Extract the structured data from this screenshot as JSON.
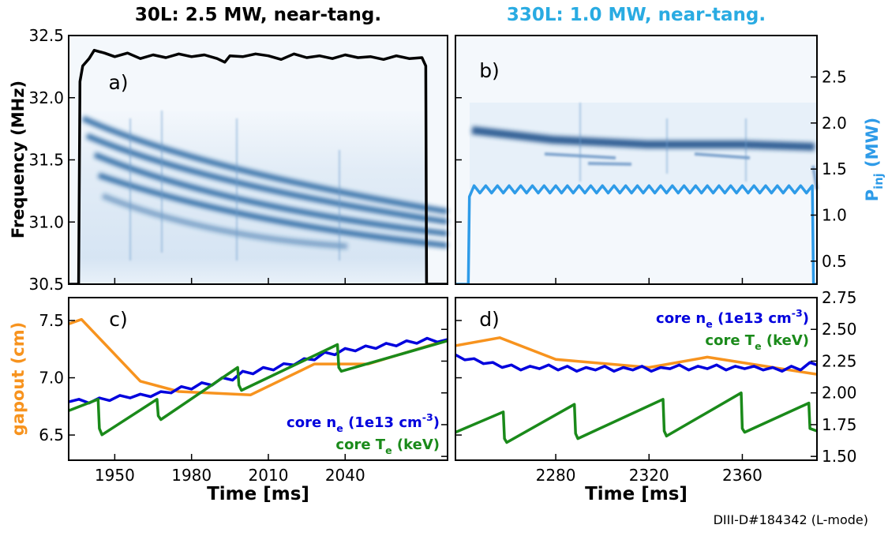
{
  "footnote": "DIII-D#184342 (L-mode)",
  "chart_data": [
    {
      "type": "line",
      "title": "30L: 2.5 MW, near-tang.",
      "title_color": "#000000",
      "panel_label": "a)",
      "ylabel": [
        {
          "text": "Frequency (MHz)"
        }
      ],
      "ylabel_color": "#000000",
      "xlim": [
        1932,
        2080
      ],
      "ylim": [
        30.5,
        32.5
      ],
      "y2lim": [
        0.25,
        2.95
      ],
      "yticks": [
        30.5,
        {
          "value": 31,
          "label": "31.0"
        },
        31.5,
        {
          "value": 32,
          "label": "32.0"
        },
        32.5
      ],
      "series": [
        {
          "color": "#000000",
          "axis": "y2",
          "x": [
            1932,
            1935.9,
            1936.4,
            1937.5,
            1940,
            1942,
            1946,
            1950,
            1955,
            1960,
            1965,
            1970,
            1975,
            1980,
            1985,
            1990,
            1993,
            1995,
            2000,
            2005,
            2010,
            2015,
            2020,
            2025,
            2030,
            2035,
            2040,
            2045,
            2050,
            2055,
            2060,
            2065,
            2070,
            2071.5,
            2071.8,
            2080
          ],
          "values": [
            0.25,
            0.25,
            2.45,
            2.62,
            2.7,
            2.79,
            2.76,
            2.72,
            2.76,
            2.7,
            2.74,
            2.71,
            2.75,
            2.72,
            2.74,
            2.7,
            2.66,
            2.73,
            2.72,
            2.75,
            2.73,
            2.69,
            2.75,
            2.71,
            2.73,
            2.7,
            2.74,
            2.71,
            2.72,
            2.69,
            2.73,
            2.7,
            2.71,
            2.62,
            0.25,
            0.25
          ]
        }
      ]
    },
    {
      "type": "line",
      "title": "330L: 1.0 MW, near-tang.",
      "title_color": "#29abe2",
      "panel_label": "b)",
      "y2label": [
        {
          "text": "P"
        },
        {
          "sub": "inj"
        },
        {
          "text": " (MW)"
        }
      ],
      "y2label_color": "#2e9be8",
      "xlim": [
        2237,
        2392
      ],
      "ylim": [
        30.5,
        32.5
      ],
      "y2lim": [
        0.25,
        2.95
      ],
      "y2ticks": [
        0.5,
        {
          "value": 1,
          "label": "1.0"
        },
        1.5,
        {
          "value": 2,
          "label": "2.0"
        },
        2.5
      ],
      "series": [
        {
          "color": "#2e9be8",
          "axis": "y2",
          "x": [
            2237,
            2242.5,
            2243,
            2245,
            2247.5,
            2250,
            2252.5,
            2255,
            2257.5,
            2260,
            2262.5,
            2265,
            2267.5,
            2270,
            2272.5,
            2275,
            2277.5,
            2280,
            2282.5,
            2285,
            2287.5,
            2290,
            2292.5,
            2295,
            2297.5,
            2300,
            2302.5,
            2305,
            2307.5,
            2310,
            2312.5,
            2315,
            2317.5,
            2320,
            2322.5,
            2325,
            2327.5,
            2330,
            2332.5,
            2335,
            2337.5,
            2340,
            2342.5,
            2345,
            2347.5,
            2350,
            2352.5,
            2355,
            2357.5,
            2360,
            2362.5,
            2365,
            2367.5,
            2370,
            2372.5,
            2375,
            2377.5,
            2380,
            2382.5,
            2385,
            2387.5,
            2390,
            2390.5,
            2392
          ],
          "values": [
            0.25,
            0.25,
            1.2,
            1.32,
            1.24,
            1.32,
            1.24,
            1.32,
            1.24,
            1.32,
            1.24,
            1.32,
            1.24,
            1.32,
            1.24,
            1.32,
            1.24,
            1.32,
            1.24,
            1.32,
            1.24,
            1.32,
            1.24,
            1.32,
            1.24,
            1.32,
            1.24,
            1.32,
            1.24,
            1.32,
            1.24,
            1.32,
            1.24,
            1.32,
            1.24,
            1.32,
            1.24,
            1.32,
            1.24,
            1.32,
            1.24,
            1.32,
            1.24,
            1.32,
            1.24,
            1.32,
            1.24,
            1.32,
            1.24,
            1.32,
            1.24,
            1.32,
            1.24,
            1.32,
            1.24,
            1.32,
            1.24,
            1.32,
            1.24,
            1.32,
            1.24,
            1.32,
            0.25,
            0.25
          ]
        }
      ]
    },
    {
      "type": "line",
      "panel_label": "c)",
      "xlabel": "Time [ms]",
      "ylabel": [
        {
          "text": "gapout (cm)"
        }
      ],
      "ylabel_color": "#f7931e",
      "xlim": [
        1932,
        2080
      ],
      "ylim": [
        6.28,
        7.7
      ],
      "y2lim": [
        1.47,
        2.75
      ],
      "xticks": [
        1950,
        1980,
        2010,
        2040
      ],
      "yticks": [
        6.5,
        {
          "value": 7,
          "label": "7.0"
        },
        7.5
      ],
      "legend": "lower right",
      "series": [
        {
          "color": "#f7931e",
          "axis": "y",
          "x": [
            1932,
            1937,
            1960,
            1975,
            2003,
            2028,
            2049,
            2080
          ],
          "values": [
            7.47,
            7.51,
            6.97,
            6.88,
            6.85,
            7.12,
            7.12,
            7.33
          ]
        },
        {
          "name": [
            {
              "text": "core n"
            },
            {
              "sub": "e"
            },
            {
              "text": " (1e13 cm"
            },
            {
              "sup": "-3"
            },
            {
              "text": ")"
            }
          ],
          "color": "#0000dd",
          "axis": "y2",
          "x": [
            1932,
            1936,
            1940,
            1944,
            1948,
            1952,
            1956,
            1960,
            1964,
            1968,
            1972,
            1976,
            1980,
            1984,
            1988,
            1992,
            1996,
            2000,
            2004,
            2008,
            2012,
            2016,
            2020,
            2024,
            2028,
            2032,
            2036,
            2040,
            2044,
            2048,
            2052,
            2056,
            2060,
            2064,
            2068,
            2072,
            2076,
            2080
          ],
          "values": [
            1.93,
            1.95,
            1.92,
            1.96,
            1.94,
            1.98,
            1.96,
            1.99,
            1.97,
            2.01,
            2.0,
            2.05,
            2.03,
            2.08,
            2.06,
            2.12,
            2.1,
            2.17,
            2.15,
            2.2,
            2.18,
            2.23,
            2.22,
            2.27,
            2.26,
            2.32,
            2.3,
            2.35,
            2.33,
            2.37,
            2.35,
            2.39,
            2.37,
            2.41,
            2.39,
            2.43,
            2.4,
            2.42
          ]
        },
        {
          "name": [
            {
              "text": "core T"
            },
            {
              "sub": "e"
            },
            {
              "text": " (keV)"
            }
          ],
          "color": "#1a8a1a",
          "axis": "y2",
          "x": [
            1932,
            1943.5,
            1944,
            1945,
            1966.5,
            1967,
            1968,
            1998,
            1998.5,
            1999.5,
            2037,
            2037.5,
            2038.5,
            2080
          ],
          "values": [
            1.86,
            1.95,
            1.72,
            1.67,
            1.95,
            1.82,
            1.79,
            2.2,
            2.06,
            2.02,
            2.38,
            2.2,
            2.17,
            2.41
          ]
        }
      ]
    },
    {
      "type": "line",
      "panel_label": "d)",
      "xlabel": "Time [ms]",
      "xlim": [
        2237,
        2392
      ],
      "ylim": [
        6.28,
        7.7
      ],
      "y2lim": [
        1.47,
        2.75
      ],
      "xticks": [
        2280,
        2320,
        2360
      ],
      "y2ticks": [
        2.75,
        {
          "value": 2.5,
          "label": "2.50"
        },
        2.25,
        {
          "value": 2,
          "label": "2.00"
        },
        1.75,
        {
          "value": 1.5,
          "label": "1.50"
        }
      ],
      "legend": "upper right",
      "series": [
        {
          "color": "#f7931e",
          "axis": "y",
          "x": [
            2237,
            2256,
            2280,
            2320,
            2345,
            2392
          ],
          "values": [
            7.28,
            7.35,
            7.16,
            7.09,
            7.18,
            7.03
          ]
        },
        {
          "name": [
            {
              "text": "core n"
            },
            {
              "sub": "e"
            },
            {
              "text": " (1e13 cm"
            },
            {
              "sup": "-3"
            },
            {
              "text": ")"
            }
          ],
          "color": "#0000dd",
          "axis": "y2",
          "x": [
            2237,
            2241,
            2245,
            2249,
            2253,
            2257,
            2261,
            2265,
            2269,
            2273,
            2277,
            2281,
            2285,
            2289,
            2293,
            2297,
            2301,
            2305,
            2309,
            2313,
            2317,
            2321,
            2325,
            2329,
            2333,
            2337,
            2341,
            2345,
            2349,
            2353,
            2357,
            2361,
            2365,
            2369,
            2373,
            2377,
            2381,
            2385,
            2389,
            2392
          ],
          "values": [
            2.3,
            2.26,
            2.27,
            2.23,
            2.24,
            2.2,
            2.22,
            2.18,
            2.21,
            2.19,
            2.22,
            2.18,
            2.21,
            2.17,
            2.2,
            2.18,
            2.21,
            2.17,
            2.2,
            2.18,
            2.21,
            2.17,
            2.2,
            2.19,
            2.22,
            2.18,
            2.21,
            2.19,
            2.22,
            2.18,
            2.21,
            2.19,
            2.21,
            2.18,
            2.2,
            2.17,
            2.21,
            2.18,
            2.24,
            2.22
          ]
        },
        {
          "name": [
            {
              "text": "core T"
            },
            {
              "sub": "e"
            },
            {
              "text": " (keV)"
            }
          ],
          "color": "#1a8a1a",
          "axis": "y2",
          "x": [
            2237,
            2257.5,
            2258,
            2259,
            2288,
            2288.5,
            2289.5,
            2326,
            2326.5,
            2327.5,
            2359.5,
            2360,
            2361,
            2388.5,
            2389,
            2392
          ],
          "values": [
            1.69,
            1.85,
            1.64,
            1.61,
            1.91,
            1.68,
            1.64,
            1.95,
            1.7,
            1.66,
            2.0,
            1.72,
            1.69,
            1.92,
            1.72,
            1.7
          ]
        }
      ]
    }
  ]
}
